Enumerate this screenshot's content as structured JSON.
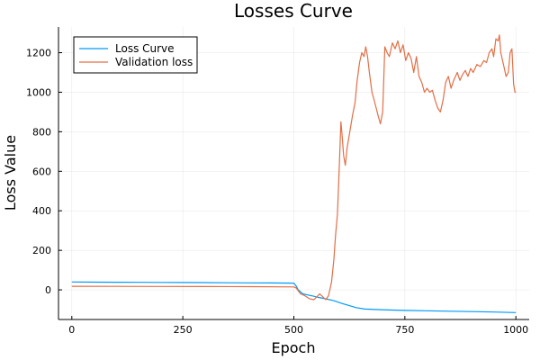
{
  "chart_data": {
    "type": "line",
    "title": "Losses Curve",
    "xlabel": "Epoch",
    "ylabel": "Loss Value",
    "xlim": [
      -30,
      1030
    ],
    "ylim": [
      -150,
      1330
    ],
    "xticks": [
      0,
      250,
      500,
      750,
      1000
    ],
    "yticks": [
      0,
      200,
      400,
      600,
      800,
      1000,
      1200
    ],
    "grid": true,
    "legend_position": "top-left",
    "colors": [
      "#009af9",
      "#e26f46"
    ],
    "series": [
      {
        "name": "Loss Curve",
        "color": "#009af9",
        "points": [
          [
            0,
            40
          ],
          [
            50,
            39
          ],
          [
            100,
            38.5
          ],
          [
            150,
            38
          ],
          [
            200,
            37.5
          ],
          [
            250,
            37
          ],
          [
            300,
            36.5
          ],
          [
            350,
            36
          ],
          [
            400,
            35.5
          ],
          [
            450,
            35
          ],
          [
            500,
            34
          ],
          [
            505,
            20
          ],
          [
            510,
            0
          ],
          [
            520,
            -20
          ],
          [
            530,
            -25
          ],
          [
            540,
            -30
          ],
          [
            555,
            -38
          ],
          [
            570,
            -45
          ],
          [
            590,
            -55
          ],
          [
            610,
            -70
          ],
          [
            625,
            -80
          ],
          [
            640,
            -90
          ],
          [
            660,
            -97
          ],
          [
            690,
            -100
          ],
          [
            720,
            -102
          ],
          [
            750,
            -104
          ],
          [
            800,
            -106
          ],
          [
            850,
            -108
          ],
          [
            900,
            -110
          ],
          [
            950,
            -112
          ],
          [
            1000,
            -115
          ]
        ]
      },
      {
        "name": "Validation loss",
        "color": "#e26f46",
        "points": [
          [
            0,
            18
          ],
          [
            100,
            17.5
          ],
          [
            200,
            17
          ],
          [
            300,
            16.5
          ],
          [
            400,
            16
          ],
          [
            500,
            15
          ],
          [
            505,
            10
          ],
          [
            510,
            -5
          ],
          [
            515,
            -20
          ],
          [
            525,
            -30
          ],
          [
            535,
            -45
          ],
          [
            545,
            -50
          ],
          [
            552,
            -35
          ],
          [
            558,
            -20
          ],
          [
            565,
            -35
          ],
          [
            572,
            -50
          ],
          [
            578,
            -30
          ],
          [
            585,
            40
          ],
          [
            590,
            150
          ],
          [
            594,
            280
          ],
          [
            598,
            380
          ],
          [
            602,
            600
          ],
          [
            606,
            850
          ],
          [
            608,
            800
          ],
          [
            612,
            680
          ],
          [
            616,
            630
          ],
          [
            620,
            720
          ],
          [
            626,
            800
          ],
          [
            632,
            880
          ],
          [
            638,
            950
          ],
          [
            642,
            1050
          ],
          [
            648,
            1150
          ],
          [
            653,
            1200
          ],
          [
            658,
            1180
          ],
          [
            662,
            1230
          ],
          [
            666,
            1180
          ],
          [
            670,
            1100
          ],
          [
            676,
            1000
          ],
          [
            682,
            950
          ],
          [
            690,
            880
          ],
          [
            695,
            840
          ],
          [
            700,
            900
          ],
          [
            705,
            1230
          ],
          [
            710,
            1200
          ],
          [
            715,
            1180
          ],
          [
            722,
            1250
          ],
          [
            728,
            1220
          ],
          [
            734,
            1260
          ],
          [
            740,
            1200
          ],
          [
            746,
            1240
          ],
          [
            752,
            1160
          ],
          [
            758,
            1200
          ],
          [
            764,
            1170
          ],
          [
            770,
            1100
          ],
          [
            776,
            1180
          ],
          [
            782,
            1080
          ],
          [
            788,
            1050
          ],
          [
            794,
            1000
          ],
          [
            800,
            1020
          ],
          [
            806,
            1000
          ],
          [
            812,
            1010
          ],
          [
            818,
            960
          ],
          [
            824,
            920
          ],
          [
            830,
            900
          ],
          [
            836,
            960
          ],
          [
            842,
            1050
          ],
          [
            848,
            1080
          ],
          [
            854,
            1020
          ],
          [
            860,
            1060
          ],
          [
            868,
            1100
          ],
          [
            874,
            1060
          ],
          [
            880,
            1090
          ],
          [
            886,
            1110
          ],
          [
            892,
            1080
          ],
          [
            898,
            1120
          ],
          [
            904,
            1100
          ],
          [
            912,
            1140
          ],
          [
            920,
            1130
          ],
          [
            928,
            1160
          ],
          [
            934,
            1150
          ],
          [
            940,
            1200
          ],
          [
            946,
            1220
          ],
          [
            950,
            1180
          ],
          [
            955,
            1270
          ],
          [
            960,
            1260
          ],
          [
            963,
            1290
          ],
          [
            966,
            1200
          ],
          [
            970,
            1160
          ],
          [
            974,
            1120
          ],
          [
            978,
            1080
          ],
          [
            983,
            1100
          ],
          [
            987,
            1200
          ],
          [
            991,
            1220
          ],
          [
            995,
            1040
          ],
          [
            998,
            1000
          ],
          [
            1000,
            1000
          ]
        ]
      }
    ]
  }
}
